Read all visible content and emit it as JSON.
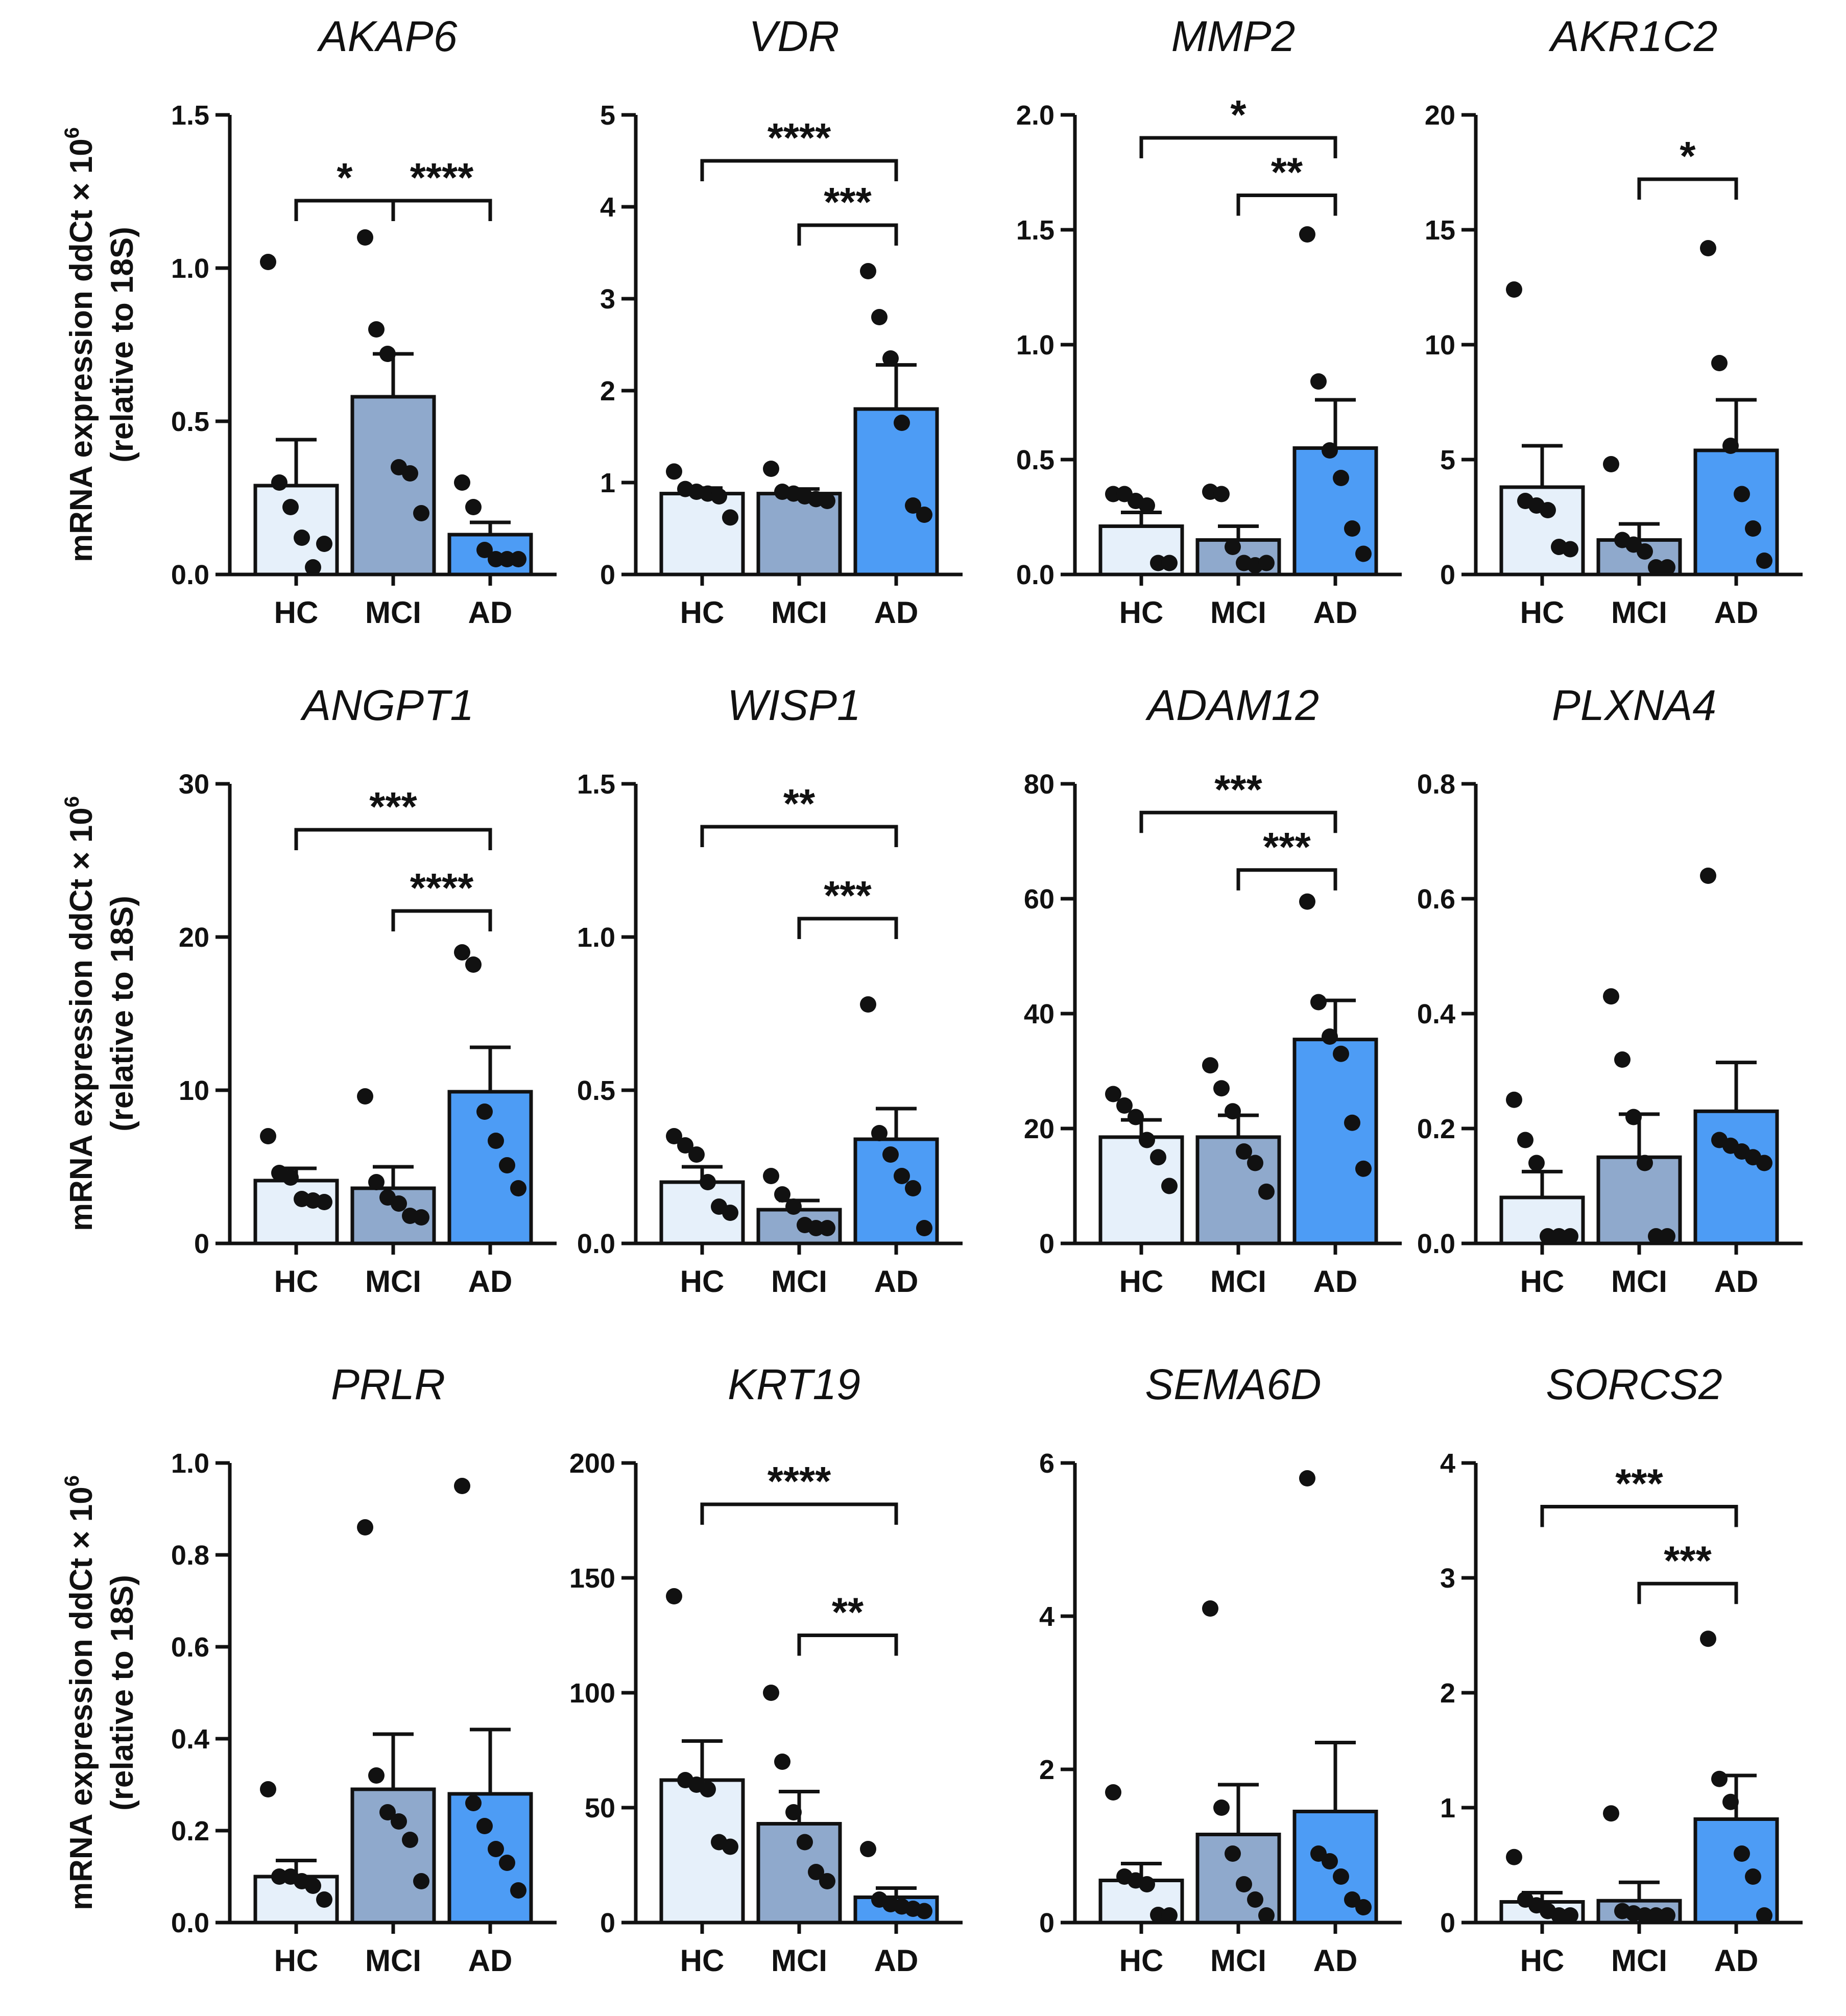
{
  "y_axis_label": {
    "line1": "mRNA expression ddCt × 10",
    "exponent": "6",
    "line2": "(relative to 18S)"
  },
  "colors": {
    "HC": "#e6f0fa",
    "MCI": "#8fa9cc",
    "AD": "#4d9cf5",
    "stroke": "#111111"
  },
  "chart_data": [
    {
      "type": "bar",
      "title": "AKAP6",
      "categories": [
        "HC",
        "MCI",
        "AD"
      ],
      "values": [
        0.29,
        0.58,
        0.13
      ],
      "errors": [
        0.15,
        0.14,
        0.04
      ],
      "ylim": [
        0,
        1.5
      ],
      "yticks": [
        "0.0",
        "0.5",
        "1.0",
        "1.5"
      ],
      "points": [
        [
          1.02,
          0.3,
          0.22,
          0.12,
          0.02,
          0.1
        ],
        [
          1.1,
          0.8,
          0.72,
          0.35,
          0.33,
          0.2
        ],
        [
          0.3,
          0.22,
          0.08,
          0.05,
          0.05,
          0.05
        ]
      ],
      "sig": [
        {
          "from": 0,
          "to": 1,
          "label": "*",
          "y": 1.22
        },
        {
          "from": 1,
          "to": 2,
          "label": "****",
          "y": 1.22
        }
      ]
    },
    {
      "type": "bar",
      "title": "VDR",
      "categories": [
        "HC",
        "MCI",
        "AD"
      ],
      "values": [
        0.88,
        0.88,
        1.8
      ],
      "errors": [
        0.06,
        0.05,
        0.48
      ],
      "ylim": [
        0,
        5
      ],
      "yticks": [
        "0",
        "1",
        "2",
        "3",
        "4",
        "5"
      ],
      "points": [
        [
          1.12,
          0.93,
          0.9,
          0.88,
          0.85,
          0.62
        ],
        [
          1.15,
          0.9,
          0.88,
          0.85,
          0.82,
          0.8
        ],
        [
          3.3,
          2.8,
          2.35,
          1.65,
          0.75,
          0.65
        ]
      ],
      "sig": [
        {
          "from": 0,
          "to": 2,
          "label": "****",
          "y": 4.5
        },
        {
          "from": 1,
          "to": 2,
          "label": "***",
          "y": 3.8
        }
      ]
    },
    {
      "type": "bar",
      "title": "MMP2",
      "categories": [
        "HC",
        "MCI",
        "AD"
      ],
      "values": [
        0.21,
        0.15,
        0.55
      ],
      "errors": [
        0.06,
        0.06,
        0.21
      ],
      "ylim": [
        0,
        2
      ],
      "yticks": [
        "0.0",
        "0.5",
        "1.0",
        "1.5",
        "2.0"
      ],
      "points": [
        [
          0.35,
          0.35,
          0.32,
          0.3,
          0.05,
          0.05
        ],
        [
          0.36,
          0.35,
          0.12,
          0.05,
          0.04,
          0.05
        ],
        [
          1.48,
          0.84,
          0.54,
          0.42,
          0.2,
          0.09
        ]
      ],
      "sig": [
        {
          "from": 0,
          "to": 2,
          "label": "*",
          "y": 1.9
        },
        {
          "from": 1,
          "to": 2,
          "label": "**",
          "y": 1.65
        }
      ]
    },
    {
      "type": "bar",
      "title": "AKR1C2",
      "categories": [
        "HC",
        "MCI",
        "AD"
      ],
      "values": [
        3.8,
        1.5,
        5.4
      ],
      "errors": [
        1.8,
        0.7,
        2.2
      ],
      "ylim": [
        0,
        20
      ],
      "yticks": [
        "0",
        "5",
        "10",
        "15",
        "20"
      ],
      "points": [
        [
          12.4,
          3.2,
          3.0,
          2.8,
          1.2,
          1.1
        ],
        [
          4.8,
          1.5,
          1.3,
          1.0,
          0.3,
          0.3
        ],
        [
          14.2,
          9.2,
          5.6,
          3.5,
          2.0,
          0.6
        ]
      ],
      "sig": [
        {
          "from": 1,
          "to": 2,
          "label": "*",
          "y": 17.2
        }
      ]
    },
    {
      "type": "bar",
      "title": "ANGPT1",
      "categories": [
        "HC",
        "MCI",
        "AD"
      ],
      "values": [
        4.1,
        3.6,
        9.9
      ],
      "errors": [
        0.8,
        1.4,
        2.9
      ],
      "ylim": [
        0,
        30
      ],
      "yticks": [
        "0",
        "10",
        "20",
        "30"
      ],
      "points": [
        [
          7.0,
          4.6,
          4.3,
          2.9,
          2.8,
          2.7
        ],
        [
          9.6,
          4.0,
          3.0,
          2.6,
          1.8,
          1.7
        ],
        [
          19.0,
          18.2,
          8.6,
          6.7,
          5.1,
          3.6
        ]
      ],
      "sig": [
        {
          "from": 0,
          "to": 2,
          "label": "***",
          "y": 27
        },
        {
          "from": 1,
          "to": 2,
          "label": "****",
          "y": 21.7
        }
      ]
    },
    {
      "type": "bar",
      "title": "WISP1",
      "categories": [
        "HC",
        "MCI",
        "AD"
      ],
      "values": [
        0.2,
        0.11,
        0.34
      ],
      "errors": [
        0.05,
        0.03,
        0.1
      ],
      "ylim": [
        0,
        1.5
      ],
      "yticks": [
        "0.0",
        "0.5",
        "1.0",
        "1.5"
      ],
      "points": [
        [
          0.35,
          0.32,
          0.29,
          0.2,
          0.12,
          0.1
        ],
        [
          0.22,
          0.16,
          0.12,
          0.06,
          0.05,
          0.05
        ],
        [
          0.78,
          0.36,
          0.29,
          0.22,
          0.18,
          0.05
        ]
      ],
      "sig": [
        {
          "from": 0,
          "to": 2,
          "label": "**",
          "y": 1.36
        },
        {
          "from": 1,
          "to": 2,
          "label": "***",
          "y": 1.06
        }
      ]
    },
    {
      "type": "bar",
      "title": "ADAM12",
      "categories": [
        "HC",
        "MCI",
        "AD"
      ],
      "values": [
        18.5,
        18.5,
        35.5
      ],
      "errors": [
        3.0,
        3.8,
        6.8
      ],
      "ylim": [
        0,
        80
      ],
      "yticks": [
        "0",
        "20",
        "40",
        "60",
        "80"
      ],
      "points": [
        [
          26,
          24,
          22,
          18,
          15,
          10
        ],
        [
          31,
          27,
          23,
          16,
          14,
          9
        ],
        [
          59.5,
          42,
          36,
          33,
          21,
          13
        ]
      ],
      "sig": [
        {
          "from": 0,
          "to": 2,
          "label": "***",
          "y": 75
        },
        {
          "from": 1,
          "to": 2,
          "label": "***",
          "y": 65
        }
      ]
    },
    {
      "type": "bar",
      "title": "PLXNA4",
      "categories": [
        "HC",
        "MCI",
        "AD"
      ],
      "values": [
        0.08,
        0.15,
        0.23
      ],
      "errors": [
        0.045,
        0.075,
        0.085
      ],
      "ylim": [
        0,
        0.8
      ],
      "yticks": [
        "0.0",
        "0.2",
        "0.4",
        "0.6",
        "0.8"
      ],
      "points": [
        [
          0.25,
          0.18,
          0.14,
          0.01,
          0.01,
          0.01
        ],
        [
          0.43,
          0.32,
          0.22,
          0.14,
          0.01,
          0.01
        ],
        [
          0.64,
          0.18,
          0.17,
          0.16,
          0.15,
          0.14
        ]
      ],
      "sig": []
    },
    {
      "type": "bar",
      "title": "PRLR",
      "categories": [
        "HC",
        "MCI",
        "AD"
      ],
      "values": [
        0.1,
        0.29,
        0.28
      ],
      "errors": [
        0.035,
        0.12,
        0.14
      ],
      "ylim": [
        0,
        1
      ],
      "yticks": [
        "0.0",
        "0.2",
        "0.4",
        "0.6",
        "0.8",
        "1.0"
      ],
      "points": [
        [
          0.29,
          0.1,
          0.1,
          0.09,
          0.08,
          0.05
        ],
        [
          0.86,
          0.32,
          0.24,
          0.22,
          0.18,
          0.09
        ],
        [
          0.95,
          0.26,
          0.21,
          0.16,
          0.13,
          0.07
        ]
      ],
      "sig": []
    },
    {
      "type": "bar",
      "title": "KRT19",
      "categories": [
        "HC",
        "MCI",
        "AD"
      ],
      "values": [
        62,
        43,
        11
      ],
      "errors": [
        17,
        14,
        4
      ],
      "ylim": [
        0,
        200
      ],
      "yticks": [
        "0",
        "50",
        "100",
        "150",
        "200"
      ],
      "points": [
        [
          142,
          62,
          60,
          58,
          35,
          33
        ],
        [
          100,
          70,
          48,
          35,
          22,
          18
        ],
        [
          32,
          10,
          8,
          7,
          6,
          5
        ]
      ],
      "sig": [
        {
          "from": 0,
          "to": 2,
          "label": "****",
          "y": 182
        },
        {
          "from": 1,
          "to": 2,
          "label": "**",
          "y": 125
        }
      ]
    },
    {
      "type": "bar",
      "title": "SEMA6D",
      "categories": [
        "HC",
        "MCI",
        "AD"
      ],
      "values": [
        0.55,
        1.15,
        1.45
      ],
      "errors": [
        0.22,
        0.65,
        0.9
      ],
      "ylim": [
        0,
        6
      ],
      "yticks": [
        "0",
        "2",
        "4",
        "6"
      ],
      "points": [
        [
          1.7,
          0.6,
          0.55,
          0.5,
          0.1,
          0.05
        ],
        [
          4.1,
          1.5,
          0.9,
          0.5,
          0.3,
          0.05
        ],
        [
          5.8,
          0.9,
          0.8,
          0.6,
          0.3,
          0.2
        ]
      ],
      "sig": []
    },
    {
      "type": "bar",
      "title": "SORCS2",
      "categories": [
        "HC",
        "MCI",
        "AD"
      ],
      "values": [
        0.18,
        0.19,
        0.9
      ],
      "errors": [
        0.08,
        0.16,
        0.38
      ],
      "ylim": [
        0,
        4
      ],
      "yticks": [
        "0",
        "1",
        "2",
        "3",
        "4"
      ],
      "points": [
        [
          0.57,
          0.2,
          0.15,
          0.1,
          0.05,
          0.05
        ],
        [
          0.95,
          0.1,
          0.08,
          0.05,
          0.04,
          0.03
        ],
        [
          2.47,
          1.25,
          1.05,
          0.6,
          0.4,
          0.05
        ]
      ],
      "sig": [
        {
          "from": 0,
          "to": 2,
          "label": "***",
          "y": 3.62
        },
        {
          "from": 1,
          "to": 2,
          "label": "***",
          "y": 2.95
        }
      ]
    }
  ]
}
